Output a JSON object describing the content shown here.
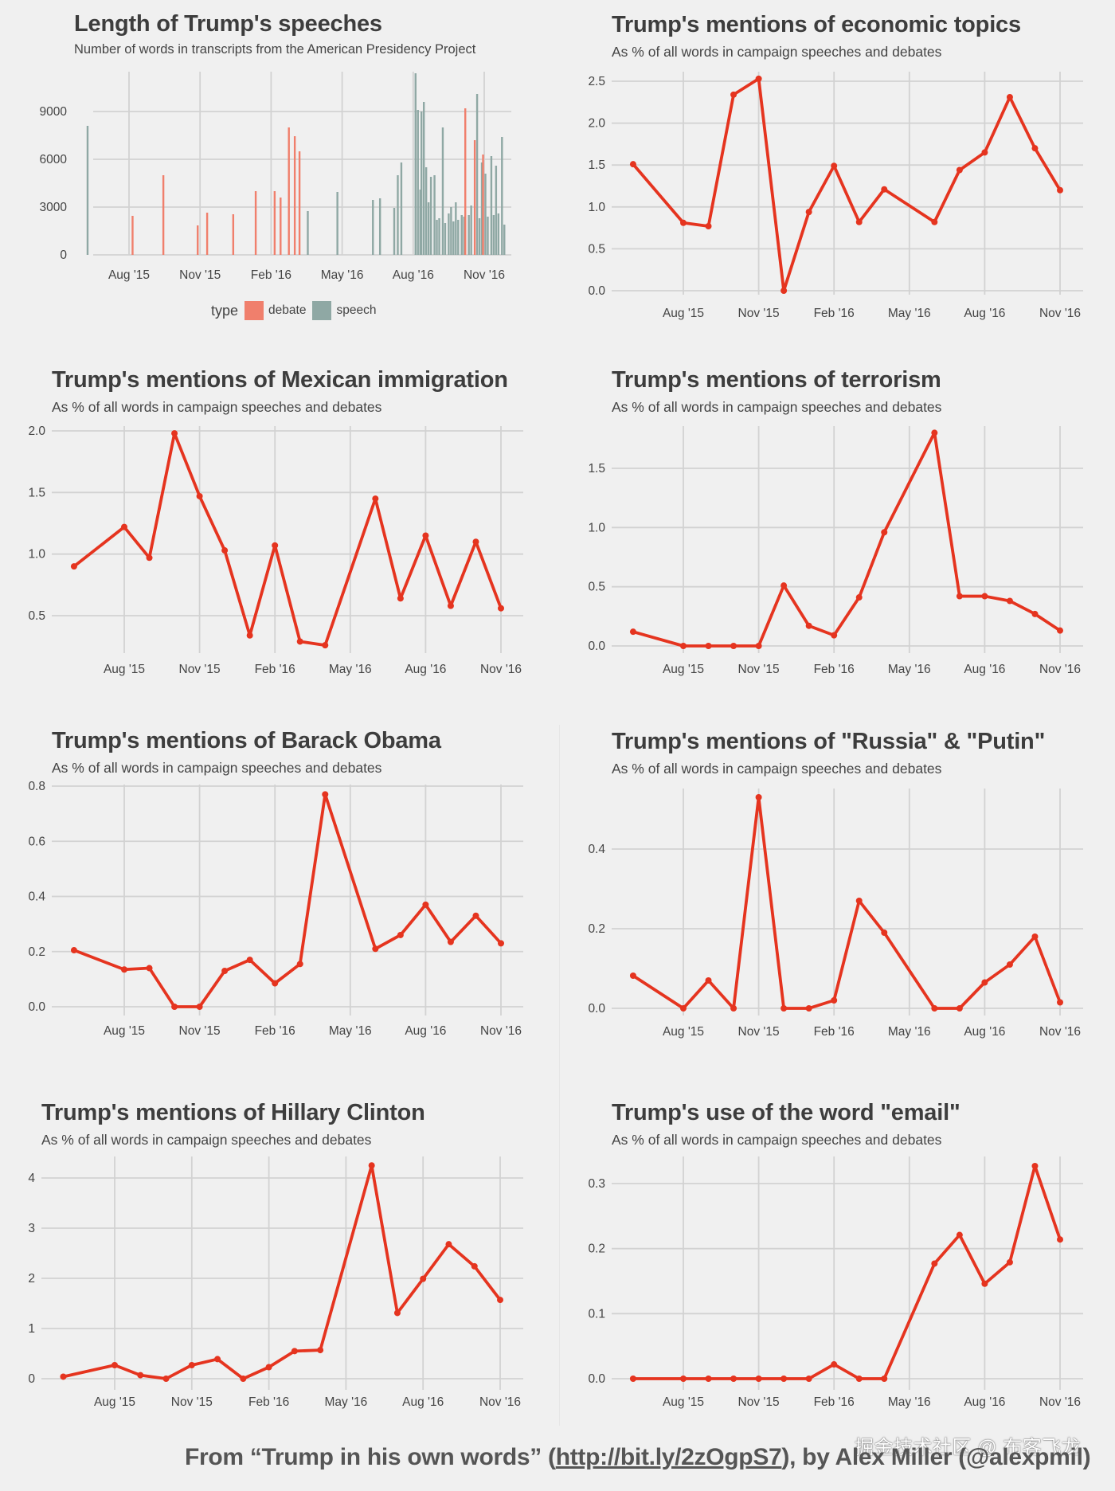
{
  "colors": {
    "background": "#f0f0f0",
    "line": "#e5341f",
    "debate": "#f07f6c",
    "speech": "#8fa8a4",
    "grid": "#d2d2d2"
  },
  "footer": {
    "prefix": "From “Trump in his own words” (",
    "link": "http://bit.ly/2zOgpS7",
    "suffix": "), by Alex Miller (@alexpmil)"
  },
  "watermark": "掘金技术社区 @ 布客飞龙",
  "x_axis": {
    "month_index_note": "0 = Aug '15",
    "ticks": [
      {
        "label": "Aug '15",
        "month": 0
      },
      {
        "label": "Nov '15",
        "month": 3
      },
      {
        "label": "Feb '16",
        "month": 6
      },
      {
        "label": "May '16",
        "month": 9
      },
      {
        "label": "Aug '16",
        "month": 12
      },
      {
        "label": "Nov '16",
        "month": 15
      }
    ]
  },
  "chart_data": [
    {
      "id": "speech-length",
      "type": "bar",
      "title": "Length of Trump's speeches",
      "subtitle": "Number of words in transcripts from the American Presidency Project",
      "xlabel": "",
      "ylabel": "",
      "ylim": [
        0,
        11500
      ],
      "xlim": [
        -2.6,
        16.2
      ],
      "yticks": [
        0,
        3000,
        6000,
        9000
      ],
      "grid": true,
      "legend": {
        "title": "type",
        "position": "bottom",
        "entries": [
          "debate",
          "speech"
        ]
      },
      "bars": [
        {
          "month": -1.75,
          "value": 8100,
          "type": "speech"
        },
        {
          "month": 0.15,
          "value": 2450,
          "type": "debate"
        },
        {
          "month": 1.45,
          "value": 5000,
          "type": "debate"
        },
        {
          "month": 2.9,
          "value": 1850,
          "type": "debate"
        },
        {
          "month": 3.3,
          "value": 2650,
          "type": "debate"
        },
        {
          "month": 4.4,
          "value": 2550,
          "type": "debate"
        },
        {
          "month": 5.35,
          "value": 4000,
          "type": "debate"
        },
        {
          "month": 6.15,
          "value": 4000,
          "type": "debate"
        },
        {
          "month": 6.4,
          "value": 3600,
          "type": "debate"
        },
        {
          "month": 6.75,
          "value": 8000,
          "type": "debate"
        },
        {
          "month": 7.0,
          "value": 7450,
          "type": "debate"
        },
        {
          "month": 7.2,
          "value": 6500,
          "type": "debate"
        },
        {
          "month": 7.55,
          "value": 2750,
          "type": "speech"
        },
        {
          "month": 8.8,
          "value": 3950,
          "type": "speech"
        },
        {
          "month": 10.3,
          "value": 3450,
          "type": "speech"
        },
        {
          "month": 10.6,
          "value": 3550,
          "type": "speech"
        },
        {
          "month": 11.2,
          "value": 2950,
          "type": "speech"
        },
        {
          "month": 11.35,
          "value": 5000,
          "type": "speech"
        },
        {
          "month": 11.5,
          "value": 5800,
          "type": "speech"
        },
        {
          "month": 12.1,
          "value": 11400,
          "type": "speech"
        },
        {
          "month": 12.2,
          "value": 9100,
          "type": "speech"
        },
        {
          "month": 12.3,
          "value": 4100,
          "type": "speech"
        },
        {
          "month": 12.35,
          "value": 9000,
          "type": "speech"
        },
        {
          "month": 12.45,
          "value": 9600,
          "type": "speech"
        },
        {
          "month": 12.55,
          "value": 5500,
          "type": "speech"
        },
        {
          "month": 12.65,
          "value": 3300,
          "type": "speech"
        },
        {
          "month": 12.75,
          "value": 4900,
          "type": "speech"
        },
        {
          "month": 12.9,
          "value": 5000,
          "type": "speech"
        },
        {
          "month": 13.0,
          "value": 2200,
          "type": "speech"
        },
        {
          "month": 13.1,
          "value": 2300,
          "type": "speech"
        },
        {
          "month": 13.25,
          "value": 8000,
          "type": "speech"
        },
        {
          "month": 13.35,
          "value": 2000,
          "type": "speech"
        },
        {
          "month": 13.5,
          "value": 2600,
          "type": "speech"
        },
        {
          "month": 13.6,
          "value": 3000,
          "type": "speech"
        },
        {
          "month": 13.7,
          "value": 2100,
          "type": "speech"
        },
        {
          "month": 13.8,
          "value": 3300,
          "type": "speech"
        },
        {
          "month": 13.9,
          "value": 2200,
          "type": "speech"
        },
        {
          "month": 14.05,
          "value": 2500,
          "type": "speech"
        },
        {
          "month": 14.15,
          "value": 2400,
          "type": "speech"
        },
        {
          "month": 14.2,
          "value": 9200,
          "type": "debate"
        },
        {
          "month": 14.35,
          "value": 2500,
          "type": "speech"
        },
        {
          "month": 14.45,
          "value": 3100,
          "type": "speech"
        },
        {
          "month": 14.6,
          "value": 7200,
          "type": "debate"
        },
        {
          "month": 14.7,
          "value": 10100,
          "type": "speech"
        },
        {
          "month": 14.8,
          "value": 2300,
          "type": "speech"
        },
        {
          "month": 14.9,
          "value": 5800,
          "type": "speech"
        },
        {
          "month": 14.95,
          "value": 6300,
          "type": "debate"
        },
        {
          "month": 15.05,
          "value": 5100,
          "type": "speech"
        },
        {
          "month": 15.15,
          "value": 2400,
          "type": "speech"
        },
        {
          "month": 15.3,
          "value": 6200,
          "type": "speech"
        },
        {
          "month": 15.4,
          "value": 2500,
          "type": "speech"
        },
        {
          "month": 15.5,
          "value": 5600,
          "type": "speech"
        },
        {
          "month": 15.6,
          "value": 2600,
          "type": "speech"
        },
        {
          "month": 15.75,
          "value": 7400,
          "type": "speech"
        },
        {
          "month": 15.85,
          "value": 1900,
          "type": "speech"
        }
      ]
    },
    {
      "id": "economic",
      "type": "line",
      "title": "Trump's mentions of economic topics",
      "subtitle": "As % of all words in campaign speeches and debates",
      "ylim": [
        -0.08,
        2.65
      ],
      "yticks": [
        0.0,
        0.5,
        1.0,
        1.5,
        2.0,
        2.5
      ],
      "ytick_labels": [
        "0.0",
        "0.5",
        "1.0",
        "1.5",
        "2.0",
        "2.5"
      ],
      "x": [
        -2,
        0,
        1,
        2,
        3,
        4,
        5,
        6,
        7,
        8,
        10,
        11,
        12,
        13,
        14,
        15
      ],
      "values": [
        1.51,
        0.81,
        0.77,
        2.34,
        2.53,
        0.0,
        0.94,
        1.49,
        0.82,
        1.21,
        0.82,
        1.44,
        1.65,
        2.31,
        1.7,
        1.2
      ]
    },
    {
      "id": "mexican-immigration",
      "type": "line",
      "title": "Trump's mentions of Mexican immigration",
      "subtitle": "As % of all words in campaign speeches and debates",
      "ylim": [
        0.2,
        2.05
      ],
      "yticks": [
        0.5,
        1.0,
        1.5,
        2.0
      ],
      "ytick_labels": [
        "0.5",
        "1.0",
        "1.5",
        "2.0"
      ],
      "x": [
        -2,
        0,
        1,
        2,
        3,
        4,
        5,
        6,
        7,
        8,
        10,
        11,
        12,
        13,
        14,
        15
      ],
      "values": [
        0.9,
        1.22,
        0.97,
        1.98,
        1.47,
        1.03,
        0.34,
        1.07,
        0.29,
        0.26,
        1.45,
        0.64,
        1.15,
        0.58,
        1.1,
        0.56
      ]
    },
    {
      "id": "terrorism",
      "type": "line",
      "title": "Trump's mentions of terrorism",
      "subtitle": "As % of all words in campaign speeches and debates",
      "ylim": [
        -0.05,
        1.9
      ],
      "yticks": [
        0.0,
        0.5,
        1.0,
        1.5
      ],
      "ytick_labels": [
        "0.0",
        "0.5",
        "1.0",
        "1.5"
      ],
      "x": [
        -2,
        0,
        1,
        2,
        3,
        4,
        5,
        6,
        7,
        8,
        10,
        11,
        12,
        13,
        14,
        15
      ],
      "values": [
        0.12,
        0.0,
        0.0,
        0.0,
        0.0,
        0.51,
        0.17,
        0.09,
        0.41,
        0.96,
        1.8,
        0.42,
        0.42,
        0.38,
        0.27,
        0.13
      ]
    },
    {
      "id": "barack-obama",
      "type": "line",
      "title": "Trump's mentions of Barack Obama",
      "subtitle": "As % of all words in campaign speeches and debates",
      "ylim": [
        -0.04,
        0.82
      ],
      "yticks": [
        0.0,
        0.2,
        0.4,
        0.6,
        0.8
      ],
      "ytick_labels": [
        "0.0",
        "0.2",
        "0.4",
        "0.6",
        "0.8"
      ],
      "x": [
        -2,
        0,
        1,
        2,
        3,
        4,
        5,
        6,
        7,
        8,
        10,
        11,
        12,
        13,
        14,
        15
      ],
      "values": [
        0.205,
        0.135,
        0.14,
        0.0,
        0.0,
        0.13,
        0.17,
        0.085,
        0.155,
        0.77,
        0.21,
        0.26,
        0.37,
        0.235,
        0.33,
        0.23
      ]
    },
    {
      "id": "russia-putin",
      "type": "line",
      "title": "Trump's mentions of \"Russia\" & \"Putin\"",
      "subtitle": "As % of all words in campaign speeches and debates",
      "ylim": [
        -0.02,
        0.56
      ],
      "yticks": [
        0.0,
        0.2,
        0.4
      ],
      "ytick_labels": [
        "0.0",
        "0.2",
        "0.4"
      ],
      "x": [
        -2,
        0,
        1,
        2,
        3,
        4,
        5,
        6,
        7,
        8,
        10,
        11,
        12,
        13,
        14,
        15
      ],
      "values": [
        0.082,
        0.0,
        0.07,
        0.0,
        0.53,
        0.0,
        0.0,
        0.02,
        0.27,
        0.19,
        0.0,
        0.0,
        0.065,
        0.11,
        0.18,
        0.015
      ]
    },
    {
      "id": "hillary-clinton",
      "type": "line",
      "title": "Trump's mentions of Hillary Clinton",
      "subtitle": "As % of all words in campaign speeches and debates",
      "ylim": [
        -0.2,
        4.45
      ],
      "yticks": [
        0,
        1,
        2,
        3,
        4
      ],
      "ytick_labels": [
        "0",
        "1",
        "2",
        "3",
        "4"
      ],
      "x": [
        -2,
        0,
        1,
        2,
        3,
        4,
        5,
        6,
        7,
        8,
        10,
        11,
        12,
        13,
        14,
        15
      ],
      "values": [
        0.04,
        0.27,
        0.07,
        0.0,
        0.27,
        0.39,
        0.0,
        0.23,
        0.55,
        0.57,
        4.25,
        1.31,
        1.99,
        2.68,
        2.24,
        1.57
      ]
    },
    {
      "id": "email",
      "type": "line",
      "title": "Trump's use of the word \"email\"",
      "subtitle": "As % of all words in campaign speeches and debates",
      "ylim": [
        -0.015,
        0.34
      ],
      "yticks": [
        0.0,
        0.1,
        0.2,
        0.3
      ],
      "ytick_labels": [
        "0.0",
        "0.1",
        "0.2",
        "0.3"
      ],
      "x": [
        -2,
        0,
        1,
        2,
        3,
        4,
        5,
        6,
        7,
        8,
        10,
        11,
        12,
        13,
        14,
        15
      ],
      "values": [
        0.0,
        0.0,
        0.0,
        0.0,
        0.0,
        0.0,
        0.0,
        0.022,
        0.0,
        0.0,
        0.177,
        0.221,
        0.146,
        0.179,
        0.327,
        0.214
      ]
    }
  ]
}
